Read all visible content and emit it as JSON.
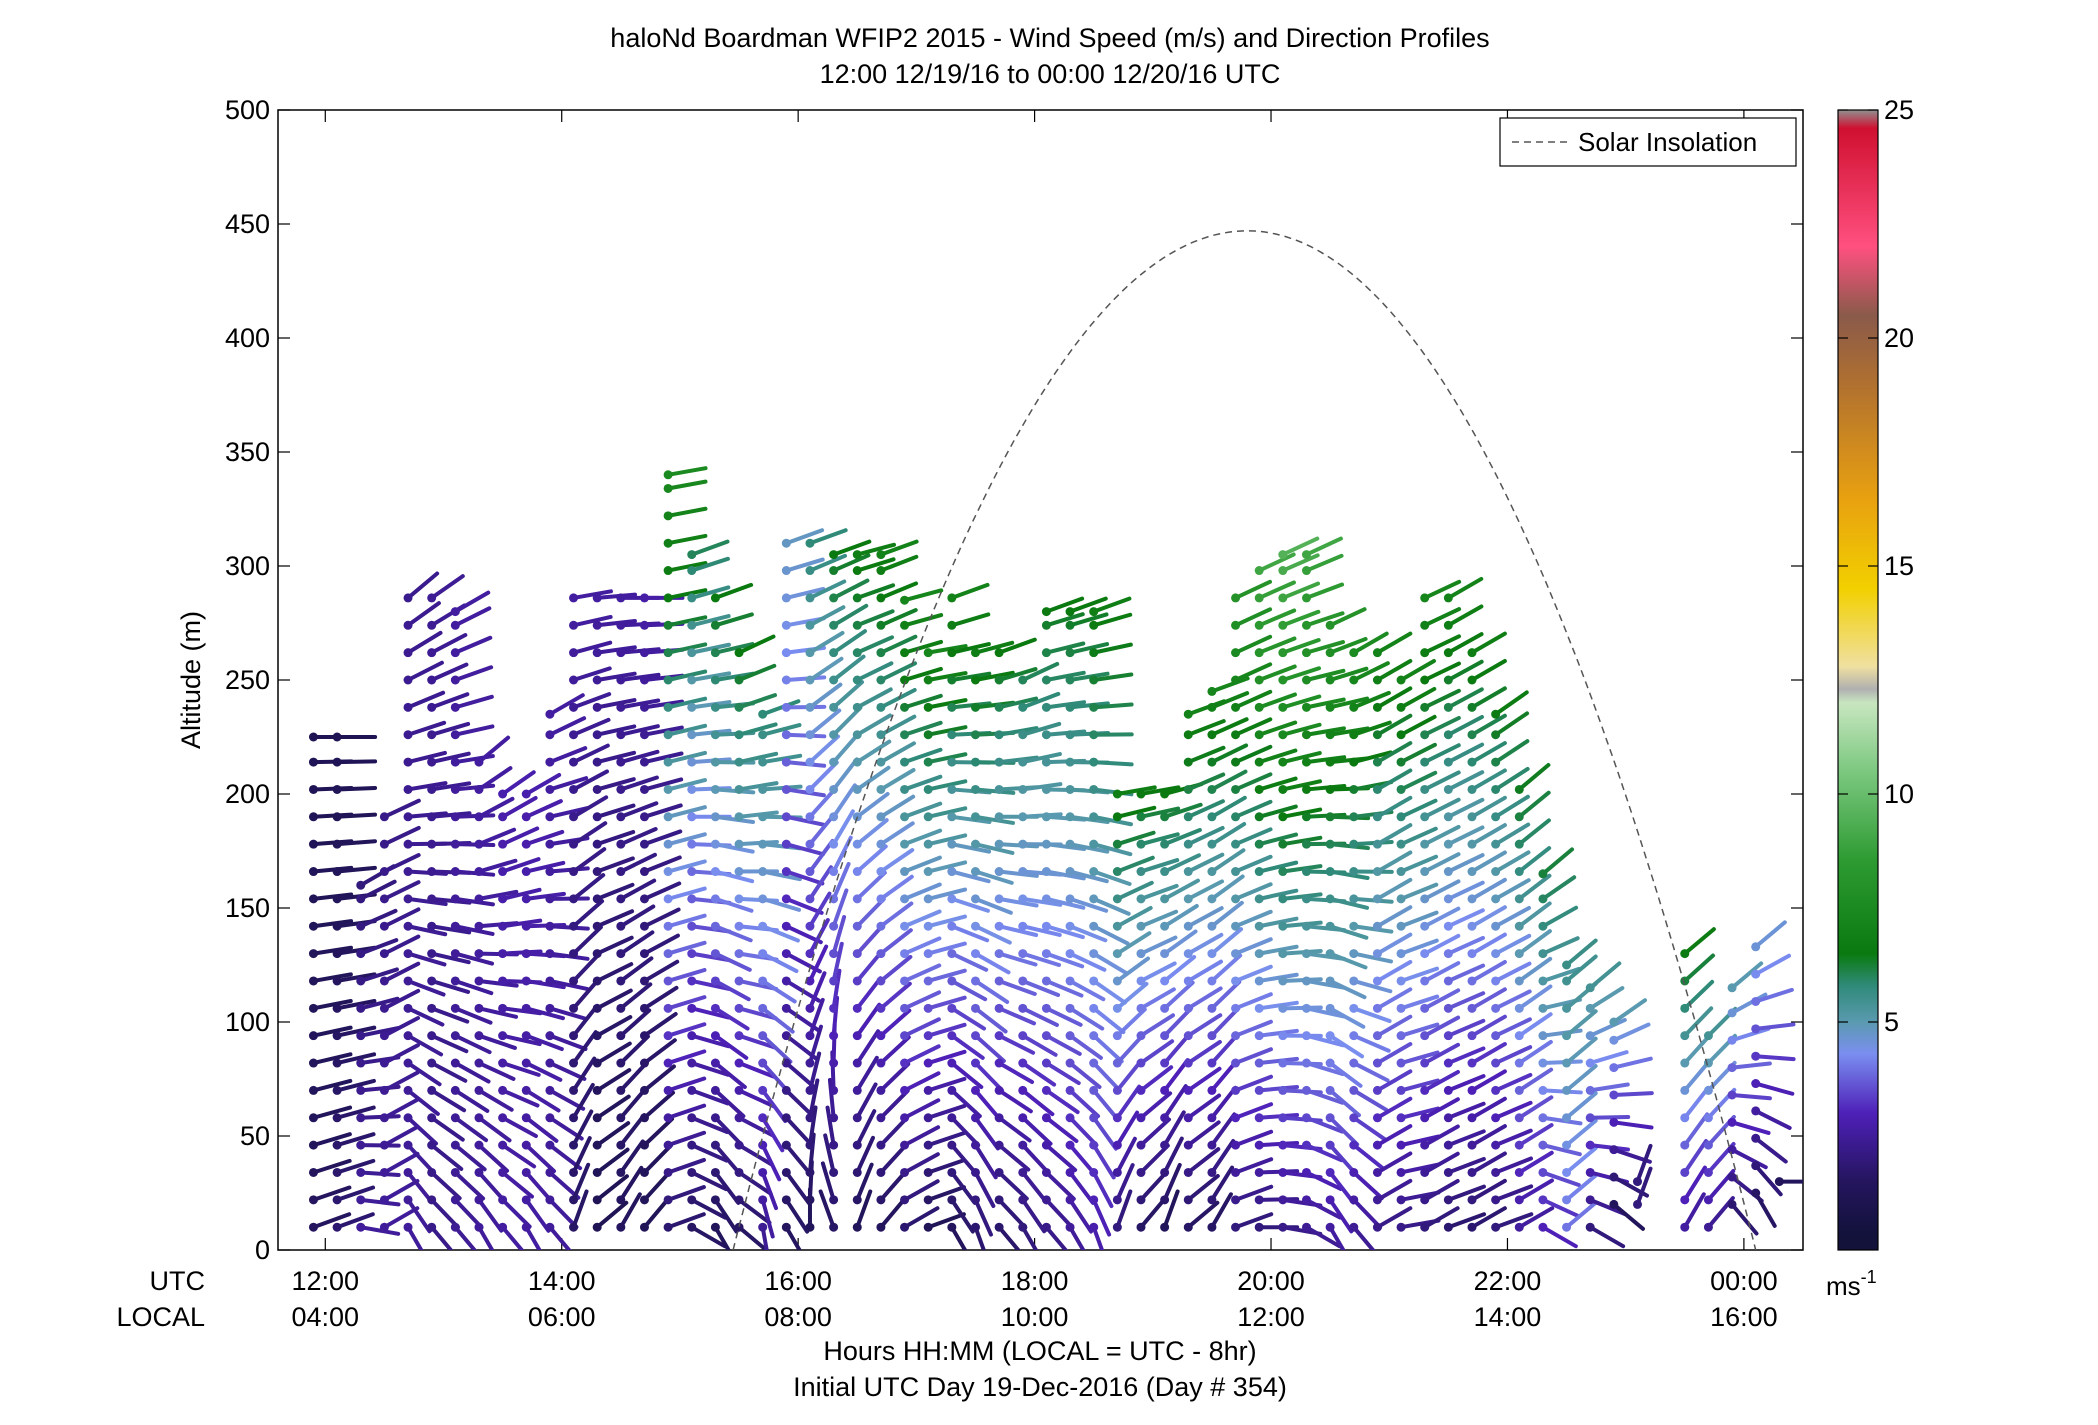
{
  "chart_data": {
    "type": "scatter",
    "title": "haloNd Boardman WFIP2 2015 - Wind Speed (m/s) and Direction Profiles",
    "subtitle": "12:00 12/19/16 to 00:00 12/20/16  UTC",
    "xlabel": "Hours HH:MM  (LOCAL = UTC - 8hr)",
    "xlabel2": "Initial UTC Day 19-Dec-2016 (Day # 354)",
    "ylabel": "Altitude (m)",
    "xlim": [
      11.6,
      24.5
    ],
    "ylim": [
      0,
      500
    ],
    "x_row_labels": {
      "utc": "UTC",
      "local": "LOCAL"
    },
    "x_ticks": [
      {
        "x": 12,
        "utc": "12:00",
        "local": "04:00"
      },
      {
        "x": 14,
        "utc": "14:00",
        "local": "06:00"
      },
      {
        "x": 16,
        "utc": "16:00",
        "local": "08:00"
      },
      {
        "x": 18,
        "utc": "18:00",
        "local": "10:00"
      },
      {
        "x": 20,
        "utc": "20:00",
        "local": "12:00"
      },
      {
        "x": 22,
        "utc": "22:00",
        "local": "14:00"
      },
      {
        "x": 24,
        "utc": "00:00",
        "local": "16:00"
      }
    ],
    "y_ticks": [
      0,
      50,
      100,
      150,
      200,
      250,
      300,
      350,
      400,
      450,
      500
    ],
    "legend": {
      "position": "top-right",
      "label": "Solar Insolation"
    },
    "colorbar": {
      "min": 0,
      "max": 25,
      "ticks": [
        5,
        10,
        15,
        20,
        25
      ],
      "unit_label": "ms",
      "unit_exp": "-1",
      "stops": [
        {
          "v": 0.3,
          "color": "#12123a"
        },
        {
          "v": 1.5,
          "color": "#24155e"
        },
        {
          "v": 3.0,
          "color": "#4e20b8"
        },
        {
          "v": 4.3,
          "color": "#7a8ef0"
        },
        {
          "v": 5.0,
          "color": "#5a9ab0"
        },
        {
          "v": 5.8,
          "color": "#2f8a78"
        },
        {
          "v": 6.5,
          "color": "#0a7a10"
        },
        {
          "v": 8.5,
          "color": "#2c9a30"
        },
        {
          "v": 10.5,
          "color": "#7cc880"
        },
        {
          "v": 12.0,
          "color": "#c8e6c0"
        },
        {
          "v": 12.3,
          "color": "#b0b0b0"
        },
        {
          "v": 12.8,
          "color": "#f0e0a0"
        },
        {
          "v": 14.5,
          "color": "#f2d000"
        },
        {
          "v": 16.5,
          "color": "#e8a010"
        },
        {
          "v": 19.0,
          "color": "#b07030"
        },
        {
          "v": 20.5,
          "color": "#8a5a4a"
        },
        {
          "v": 22.0,
          "color": "#ff5080"
        },
        {
          "v": 24.6,
          "color": "#d01030"
        },
        {
          "v": 25.0,
          "color": "#909090"
        }
      ]
    },
    "solar_insolation_curve": {
      "x_start": 15.45,
      "x_end": 24.1,
      "x_peak": 19.8,
      "peak_altitude": 447
    },
    "profiles": [
      {
        "t": 11.9,
        "h_min": 10,
        "h_max": 225,
        "speed": [
          1.5,
          1.2
        ],
        "dir": [
          250,
          270
        ]
      },
      {
        "t": 12.1,
        "h_min": 10,
        "h_max": 225,
        "speed": [
          1.8,
          1.2
        ],
        "dir": [
          250,
          270
        ]
      },
      {
        "t": 12.3,
        "h_min": 10,
        "h_max": 160,
        "speed": [
          2.5,
          2.0
        ],
        "dir": [
          280,
          240
        ]
      },
      {
        "t": 12.5,
        "h_min": 10,
        "h_max": 190,
        "speed": [
          2.5,
          2.2
        ],
        "dir": [
          240,
          245
        ]
      },
      {
        "t": 12.7,
        "h_min": 10,
        "h_max": 290,
        "speed": [
          2.5,
          2.3
        ],
        "dir": [
          330,
          230
        ]
      },
      {
        "t": 12.9,
        "h_min": 10,
        "h_max": 290,
        "speed": [
          2.2,
          2.4
        ],
        "dir": [
          320,
          235
        ]
      },
      {
        "t": 13.1,
        "h_min": 10,
        "h_max": 280,
        "speed": [
          2.4,
          2.6
        ],
        "dir": [
          320,
          240
        ]
      },
      {
        "t": 13.3,
        "h_min": 10,
        "h_max": 215,
        "speed": [
          2.5,
          2.6
        ],
        "dir": [
          330,
          230
        ]
      },
      {
        "t": 13.5,
        "h_min": 10,
        "h_max": 200,
        "speed": [
          2.6,
          2.8
        ],
        "dir": [
          320,
          235
        ]
      },
      {
        "t": 13.7,
        "h_min": 10,
        "h_max": 200,
        "speed": [
          2.6,
          2.8
        ],
        "dir": [
          330,
          240
        ]
      },
      {
        "t": 13.9,
        "h_min": 10,
        "h_max": 235,
        "speed": [
          2.5,
          2.6
        ],
        "dir": [
          320,
          240
        ]
      },
      {
        "t": 14.1,
        "h_min": 10,
        "h_max": 290,
        "speed": [
          1.6,
          2.6
        ],
        "dir": [
          200,
          260
        ]
      },
      {
        "t": 14.3,
        "h_min": 10,
        "h_max": 290,
        "speed": [
          1.2,
          2.6
        ],
        "dir": [
          230,
          265
        ]
      },
      {
        "t": 14.5,
        "h_min": 10,
        "h_max": 290,
        "speed": [
          1.5,
          2.6
        ],
        "dir": [
          210,
          270
        ]
      },
      {
        "t": 14.7,
        "h_min": 10,
        "h_max": 290,
        "speed": [
          1.3,
          2.7
        ],
        "dir": [
          220,
          270
        ]
      },
      {
        "t": 14.9,
        "h_min": 10,
        "h_max": 340,
        "speed": [
          1.8,
          7.5
        ],
        "dir": [
          250,
          260
        ]
      },
      {
        "t": 15.1,
        "h_min": 10,
        "h_max": 305,
        "speed": [
          1.6,
          6.0
        ],
        "dir": [
          300,
          250
        ]
      },
      {
        "t": 15.3,
        "h_min": 10,
        "h_max": 290,
        "speed": [
          1.4,
          6.5
        ],
        "dir": [
          330,
          250
        ]
      },
      {
        "t": 15.5,
        "h_min": 10,
        "h_max": 265,
        "speed": [
          1.6,
          6.5
        ],
        "dir": [
          310,
          245
        ]
      },
      {
        "t": 15.7,
        "h_min": 10,
        "h_max": 235,
        "speed": [
          2.4,
          5.8
        ],
        "dir": [
          350,
          250
        ]
      },
      {
        "t": 15.9,
        "h_min": 10,
        "h_max": 315,
        "speed": [
          1.5,
          4.8
        ],
        "dir": [
          330,
          250
        ]
      },
      {
        "t": 16.1,
        "h_min": 10,
        "h_max": 315,
        "speed": [
          1.4,
          5.8
        ],
        "dir": [
          180,
          250
        ]
      },
      {
        "t": 16.3,
        "h_min": 10,
        "h_max": 305,
        "speed": [
          1.6,
          6.5
        ],
        "dir": [
          160,
          250
        ]
      },
      {
        "t": 16.5,
        "h_min": 10,
        "h_max": 305,
        "speed": [
          1.4,
          6.8
        ],
        "dir": [
          200,
          255
        ]
      },
      {
        "t": 16.7,
        "h_min": 10,
        "h_max": 305,
        "speed": [
          1.5,
          7.0
        ],
        "dir": [
          220,
          250
        ]
      },
      {
        "t": 16.9,
        "h_min": 10,
        "h_max": 285,
        "speed": [
          1.8,
          7.2
        ],
        "dir": [
          240,
          255
        ]
      },
      {
        "t": 17.1,
        "h_min": 10,
        "h_max": 265,
        "speed": [
          1.3,
          7.2
        ],
        "dir": [
          250,
          260
        ]
      },
      {
        "t": 17.3,
        "h_min": 10,
        "h_max": 290,
        "speed": [
          1.5,
          7.0
        ],
        "dir": [
          330,
          250
        ]
      },
      {
        "t": 17.5,
        "h_min": 10,
        "h_max": 265,
        "speed": [
          1.8,
          6.8
        ],
        "dir": [
          340,
          255
        ]
      },
      {
        "t": 17.7,
        "h_min": 10,
        "h_max": 265,
        "speed": [
          1.7,
          6.5
        ],
        "dir": [
          320,
          250
        ]
      },
      {
        "t": 17.9,
        "h_min": 10,
        "h_max": 255,
        "speed": [
          2.0,
          6.0
        ],
        "dir": [
          330,
          245
        ]
      },
      {
        "t": 18.1,
        "h_min": 10,
        "h_max": 280,
        "speed": [
          2.2,
          6.5
        ],
        "dir": [
          320,
          250
        ]
      },
      {
        "t": 18.3,
        "h_min": 10,
        "h_max": 280,
        "speed": [
          2.5,
          6.5
        ],
        "dir": [
          330,
          250
        ]
      },
      {
        "t": 18.5,
        "h_min": 10,
        "h_max": 280,
        "speed": [
          2.8,
          6.8
        ],
        "dir": [
          340,
          250
        ]
      },
      {
        "t": 18.7,
        "h_min": 10,
        "h_max": 200,
        "speed": [
          2.0,
          6.8
        ],
        "dir": [
          200,
          260
        ]
      },
      {
        "t": 18.9,
        "h_min": 10,
        "h_max": 200,
        "speed": [
          1.6,
          6.5
        ],
        "dir": [
          220,
          260
        ]
      },
      {
        "t": 19.1,
        "h_min": 10,
        "h_max": 200,
        "speed": [
          1.4,
          6.5
        ],
        "dir": [
          200,
          255
        ]
      },
      {
        "t": 19.3,
        "h_min": 10,
        "h_max": 235,
        "speed": [
          1.6,
          7.0
        ],
        "dir": [
          230,
          250
        ]
      },
      {
        "t": 19.5,
        "h_min": 10,
        "h_max": 245,
        "speed": [
          1.6,
          7.2
        ],
        "dir": [
          210,
          250
        ]
      },
      {
        "t": 19.7,
        "h_min": 10,
        "h_max": 290,
        "speed": [
          2.0,
          8.0
        ],
        "dir": [
          250,
          245
        ]
      },
      {
        "t": 19.9,
        "h_min": 10,
        "h_max": 300,
        "speed": [
          2.0,
          9.0
        ],
        "dir": [
          270,
          245
        ]
      },
      {
        "t": 20.1,
        "h_min": 10,
        "h_max": 305,
        "speed": [
          2.2,
          9.5
        ],
        "dir": [
          280,
          245
        ]
      },
      {
        "t": 20.3,
        "h_min": 10,
        "h_max": 305,
        "speed": [
          2.4,
          9.0
        ],
        "dir": [
          300,
          245
        ]
      },
      {
        "t": 20.5,
        "h_min": 10,
        "h_max": 275,
        "speed": [
          2.6,
          8.0
        ],
        "dir": [
          330,
          245
        ]
      },
      {
        "t": 20.7,
        "h_min": 10,
        "h_max": 265,
        "speed": [
          2.4,
          7.5
        ],
        "dir": [
          320,
          240
        ]
      },
      {
        "t": 20.9,
        "h_min": 10,
        "h_max": 265,
        "speed": [
          2.2,
          7.0
        ],
        "dir": [
          240,
          240
        ]
      },
      {
        "t": 21.1,
        "h_min": 10,
        "h_max": 250,
        "speed": [
          2.2,
          7.0
        ],
        "dir": [
          260,
          240
        ]
      },
      {
        "t": 21.3,
        "h_min": 10,
        "h_max": 290,
        "speed": [
          2.0,
          7.2
        ],
        "dir": [
          240,
          245
        ]
      },
      {
        "t": 21.5,
        "h_min": 10,
        "h_max": 290,
        "speed": [
          1.8,
          7.0
        ],
        "dir": [
          250,
          240
        ]
      },
      {
        "t": 21.7,
        "h_min": 10,
        "h_max": 265,
        "speed": [
          1.8,
          6.8
        ],
        "dir": [
          240,
          240
        ]
      },
      {
        "t": 21.9,
        "h_min": 10,
        "h_max": 235,
        "speed": [
          2.0,
          6.6
        ],
        "dir": [
          250,
          235
        ]
      },
      {
        "t": 22.1,
        "h_min": 10,
        "h_max": 205,
        "speed": [
          2.6,
          6.4
        ],
        "dir": [
          240,
          230
        ]
      },
      {
        "t": 22.3,
        "h_min": 10,
        "h_max": 165,
        "speed": [
          3.0,
          6.2
        ],
        "dir": [
          300,
          230
        ]
      },
      {
        "t": 22.5,
        "h_min": 10,
        "h_max": 125,
        "speed": [
          4.0,
          5.6
        ],
        "dir": [
          230,
          230
        ]
      },
      {
        "t": 22.7,
        "h_min": 10,
        "h_max": 115,
        "speed": [
          2.0,
          5.4
        ],
        "dir": [
          300,
          230
        ]
      },
      {
        "t": 22.9,
        "h_min": 20,
        "h_max": 100,
        "speed": [
          1.4,
          5.0
        ],
        "dir": [
          310,
          235
        ]
      },
      {
        "t": 23.1,
        "h_min": 20,
        "h_max": 30,
        "speed": [
          2.0,
          2.0
        ],
        "dir": [
          200,
          200
        ]
      },
      {
        "t": 23.5,
        "h_min": 10,
        "h_max": 130,
        "speed": [
          2.6,
          6.6
        ],
        "dir": [
          210,
          230
        ]
      },
      {
        "t": 23.7,
        "h_min": 10,
        "h_max": 95,
        "speed": [
          2.4,
          5.4
        ],
        "dir": [
          220,
          225
        ]
      },
      {
        "t": 23.9,
        "h_min": 20,
        "h_max": 115,
        "speed": [
          1.8,
          5.0
        ],
        "dir": [
          320,
          230
        ]
      },
      {
        "t": 24.1,
        "h_min": 25,
        "h_max": 135,
        "speed": [
          1.6,
          4.6
        ],
        "dir": [
          330,
          230
        ]
      },
      {
        "t": 24.3,
        "h_min": 30,
        "h_max": 35,
        "speed": [
          1.4,
          1.4
        ],
        "dir": [
          270,
          270
        ]
      }
    ]
  }
}
